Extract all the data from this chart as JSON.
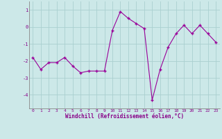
{
  "x": [
    0,
    1,
    2,
    3,
    4,
    5,
    6,
    7,
    8,
    9,
    10,
    11,
    12,
    13,
    14,
    15,
    16,
    17,
    18,
    19,
    20,
    21,
    22,
    23
  ],
  "y": [
    -1.8,
    -2.5,
    -2.1,
    -2.1,
    -1.8,
    -2.3,
    -2.7,
    -2.6,
    -2.6,
    -2.6,
    -0.2,
    0.9,
    0.5,
    0.2,
    -0.1,
    -4.3,
    -2.5,
    -1.2,
    -0.4,
    0.1,
    -0.4,
    0.1,
    -0.4,
    -0.9
  ],
  "xlabel": "Windchill (Refroidissement éolien,°C)",
  "xtick_labels": [
    "0",
    "1",
    "2",
    "3",
    "4",
    "5",
    "6",
    "7",
    "8",
    "9",
    "10",
    "11",
    "12",
    "13",
    "14",
    "15",
    "16",
    "17",
    "18",
    "19",
    "20",
    "21",
    "22",
    "23"
  ],
  "ylim": [
    -4.8,
    1.5
  ],
  "yticks": [
    -4,
    -3,
    -2,
    -1,
    0,
    1
  ],
  "line_color": "#990099",
  "marker_color": "#990099",
  "bg_color": "#cce8e8",
  "grid_color": "#aad0d0",
  "figsize": [
    3.2,
    2.0
  ],
  "dpi": 100
}
